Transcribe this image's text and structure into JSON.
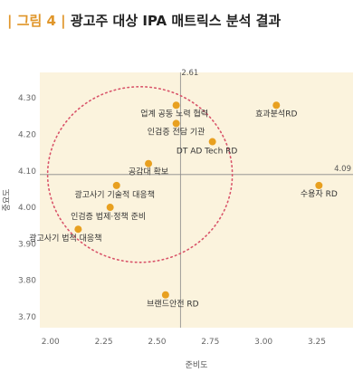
{
  "figure": {
    "tag": "| 그림 4 |",
    "title": "광고주 대상 IPA 매트릭스 분석 결과"
  },
  "chart_data": {
    "type": "scatter",
    "title": "광고주 대상 IPA 매트릭스 분석 결과",
    "xlabel": "준비도",
    "ylabel": "중요도",
    "xlim": [
      1.95,
      3.42
    ],
    "ylim": [
      3.67,
      4.37
    ],
    "xticks": [
      "2.00",
      "2.25",
      "2.50",
      "2.75",
      "3.00",
      "3.25"
    ],
    "yticks": [
      "4.30",
      "4.20",
      "4.10",
      "4.00",
      "3.90",
      "3.80",
      "3.70"
    ],
    "ref_lines": {
      "x": 2.61,
      "y": 4.09,
      "x_label": "2.61",
      "y_label": "4.09"
    },
    "point_color": "#e8a020",
    "quadrant_color": "#fbf3dd",
    "circle_color": "#d9546a",
    "points": [
      {
        "label": "업계 공동 노력 협력",
        "x": 2.59,
        "y": 4.28
      },
      {
        "label": "인검증 전담 기관",
        "x": 2.59,
        "y": 4.23
      },
      {
        "label": "효과분석RD",
        "x": 3.06,
        "y": 4.28
      },
      {
        "label": "DT AD Tech RD",
        "x": 2.76,
        "y": 4.18
      },
      {
        "label": "공감대 확보",
        "x": 2.46,
        "y": 4.12
      },
      {
        "label": "광고사기 기술적 대응책",
        "x": 2.31,
        "y": 4.06
      },
      {
        "label": "수용자 RD",
        "x": 3.26,
        "y": 4.06
      },
      {
        "label": "인검증 법제·정책 준비",
        "x": 2.28,
        "y": 4.0
      },
      {
        "label": "광고사기 법적 대응책",
        "x": 2.13,
        "y": 3.94
      },
      {
        "label": "브랜드안전 RD",
        "x": 2.54,
        "y": 3.76
      }
    ]
  }
}
